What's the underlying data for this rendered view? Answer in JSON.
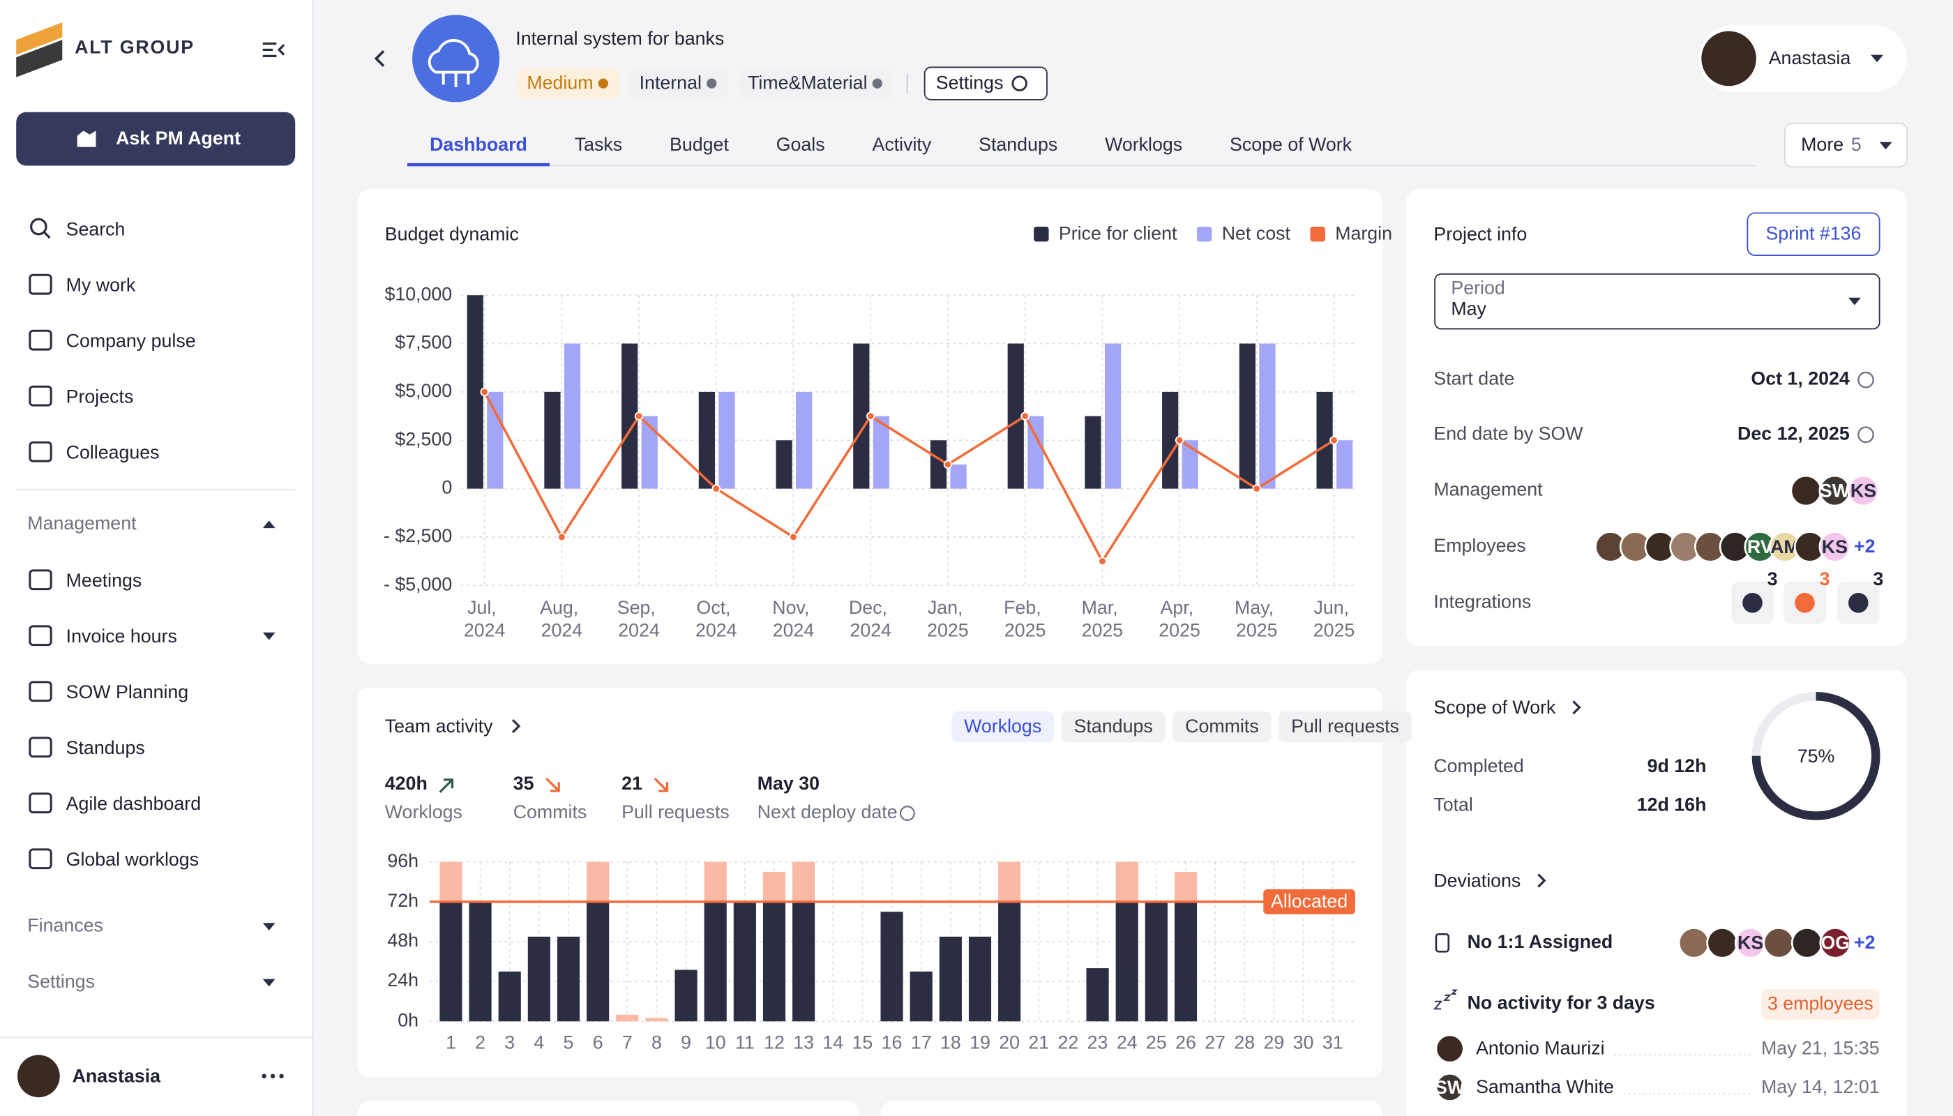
{
  "sidebar": {
    "brand": "ALT GROUP",
    "agent_button": "Ask PM Agent",
    "nav": [
      "Search",
      "My work",
      "Company pulse",
      "Projects",
      "Colleagues"
    ],
    "sections": [
      {
        "title": "Management",
        "items": [
          "Meetings",
          "Invoice hours",
          "SOW Planning",
          "Standups",
          "Agile dashboard",
          "Global worklogs"
        ]
      },
      {
        "title": "Finances"
      },
      {
        "title": "Settings"
      }
    ],
    "user": "Anastasia"
  },
  "header": {
    "title": "Internal system for banks",
    "tags": [
      "Medium",
      "Internal",
      "Time&Material"
    ],
    "settings_button": "Settings",
    "user": "Anastasia"
  },
  "tabs": {
    "items": [
      "Dashboard",
      "Tasks",
      "Budget",
      "Goals",
      "Activity",
      "Standups",
      "Worklogs",
      "Scope of Work"
    ],
    "active": "Dashboard",
    "more": "More",
    "more_count": 5
  },
  "chart_data": [
    {
      "type": "bar",
      "title": "Budget dynamic",
      "categories": [
        "Jul, 2024",
        "Aug, 2024",
        "Sep, 2024",
        "Oct, 2024",
        "Nov, 2024",
        "Dec, 2024",
        "Jan, 2025",
        "Feb, 2025",
        "Mar, 2025",
        "Apr, 2025",
        "May, 2025",
        "Jun, 2025"
      ],
      "series": [
        {
          "name": "Price for client",
          "color": "#2b2d42",
          "values": [
            10000,
            5000,
            7500,
            5000,
            2500,
            7500,
            2500,
            7500,
            3750,
            5000,
            7500,
            5000
          ]
        },
        {
          "name": "Net cost",
          "color": "#a3a6f7",
          "values": [
            5000,
            7500,
            3750,
            5000,
            5000,
            3750,
            1250,
            3750,
            7500,
            2500,
            7500,
            2500
          ]
        },
        {
          "name": "Margin",
          "color": "#f26b3a",
          "type": "line",
          "values": [
            5000,
            -2500,
            3750,
            0,
            -2500,
            3750,
            1250,
            3750,
            -3750,
            2500,
            0,
            2500
          ]
        }
      ],
      "ylim": [
        -5000,
        10000
      ],
      "yticks": [
        {
          "value": 10000,
          "label": "$10,000"
        },
        {
          "value": 7500,
          "label": "$7,500"
        },
        {
          "value": 5000,
          "label": "$5,000"
        },
        {
          "value": 2500,
          "label": "$2,500"
        },
        0,
        {
          "value": -2500,
          "label": "- $2,500"
        },
        {
          "value": -5000,
          "label": "- $5,000"
        }
      ],
      "grid": true
    },
    {
      "type": "stacked_bar",
      "title": "Team activity",
      "filters": [
        "Worklogs",
        "Standups",
        "Commits",
        "Pull requests"
      ],
      "active_filter": "Worklogs",
      "stats": [
        {
          "value": "420h",
          "label": "Worklogs",
          "trend": "up"
        },
        {
          "value": "35",
          "label": "Commits",
          "trend": "down"
        },
        {
          "value": "21",
          "label": "Pull requests",
          "trend": "down"
        },
        {
          "value": "May 30",
          "label": "Next deploy date"
        }
      ],
      "categories": [
        "1",
        "2",
        "3",
        "4",
        "5",
        "6",
        "7",
        "8",
        "9",
        "10",
        "11",
        "12",
        "13",
        "14",
        "15",
        "16",
        "17",
        "18",
        "19",
        "20",
        "21",
        "22",
        "23",
        "24",
        "25",
        "26",
        "27",
        "28",
        "29",
        "30",
        "31"
      ],
      "series": [
        {
          "color": "#2b2d42",
          "values": [
            72,
            72,
            30,
            51,
            51,
            72,
            0,
            0,
            31,
            72,
            72,
            72,
            72,
            0,
            0,
            66,
            30,
            51,
            51,
            72,
            0,
            0,
            32,
            72,
            72,
            72,
            0,
            0,
            0,
            0,
            0
          ]
        },
        {
          "color": "#f9b9a4",
          "values": [
            24,
            0,
            0,
            0,
            0,
            24,
            4,
            2,
            0,
            24,
            0,
            18,
            24,
            0,
            0,
            0,
            0,
            0,
            0,
            24,
            0,
            0,
            0,
            24,
            0,
            18,
            0,
            0,
            0,
            0,
            0
          ]
        }
      ],
      "allocated": {
        "label": "Allocated",
        "value": 72,
        "color": "#f26b3a"
      },
      "ylim": [
        0,
        96
      ],
      "yticks": [
        {
          "value": 96,
          "label": "96h"
        },
        {
          "value": 72,
          "label": "72h"
        },
        {
          "value": 48,
          "label": "48h"
        },
        {
          "value": 24,
          "label": "24h"
        },
        {
          "value": 0,
          "label": "0h"
        }
      ],
      "grid": true
    }
  ],
  "project_info": {
    "title": "Project info",
    "sprint": "Sprint #136",
    "period_label": "Period",
    "period": "May",
    "start_label": "Start date",
    "start_date": "Oct 1, 2024",
    "end_label": "End date by SOW",
    "end_date": "Dec 12, 2025",
    "management_label": "Management",
    "management": [
      "SW",
      "KS"
    ],
    "employees_label": "Employees",
    "employees": [
      "RV",
      "AM",
      "KS"
    ],
    "employees_more": "+2",
    "integrations_label": "Integrations",
    "integration_counts": [
      3,
      3,
      3
    ]
  },
  "scope": {
    "title": "Scope of Work",
    "completed_label": "Completed",
    "completed": "9d 12h",
    "total_label": "Total",
    "total": "12d 16h",
    "progress": 75,
    "progress_label": "75%"
  },
  "deviations": {
    "title": "Deviations",
    "items": [
      {
        "label": "No 1:1 Assigned",
        "avatars": [
          "KS",
          "OG"
        ],
        "more": "+2"
      },
      {
        "label": "No activity for 3 days",
        "badge": "3 employees",
        "people": [
          {
            "name": "Antonio Maurizi",
            "time": "May 21, 15:35"
          },
          {
            "initials": "SW",
            "name": "Samantha White",
            "time": "May 14, 12:01"
          }
        ]
      }
    ]
  }
}
